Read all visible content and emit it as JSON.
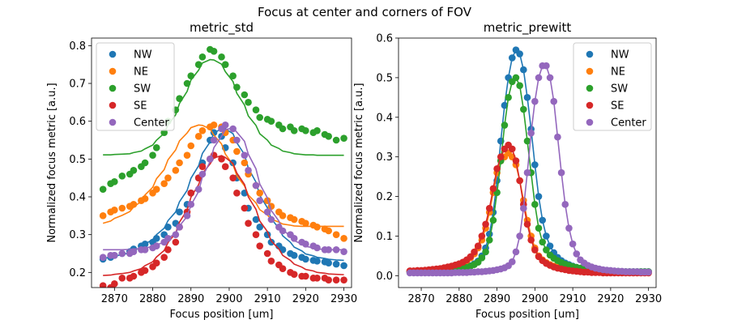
{
  "suptitle": "Focus at center and corners of FOV",
  "chart_data": [
    {
      "type": "scatter",
      "title": "metric_std",
      "xlabel": "Focus position [um]",
      "ylabel": "Normalized focus metric [a.u.]",
      "xlim": [
        2864,
        2932
      ],
      "ylim": [
        0.16,
        0.82
      ],
      "xticks": [
        2870,
        2880,
        2890,
        2900,
        2910,
        2920,
        2930
      ],
      "yticks": [
        0.2,
        0.3,
        0.4,
        0.5,
        0.6,
        0.7,
        0.8
      ],
      "legend_position": "upper-left",
      "x": [
        2867,
        2869,
        2870,
        2872,
        2874,
        2875,
        2877,
        2878,
        2880,
        2881,
        2883,
        2884,
        2886,
        2887,
        2889,
        2890,
        2892,
        2893,
        2895,
        2896,
        2898,
        2899,
        2901,
        2902,
        2904,
        2905,
        2907,
        2908,
        2910,
        2911,
        2913,
        2914,
        2916,
        2917,
        2919,
        2920,
        2922,
        2923,
        2925,
        2926,
        2928,
        2930
      ],
      "series": [
        {
          "name": "NW",
          "color": "#1f77b4",
          "points": [
            0.235,
            0.24,
            0.245,
            0.25,
            0.255,
            0.262,
            0.27,
            0.275,
            0.28,
            0.29,
            0.3,
            0.32,
            0.33,
            0.36,
            0.38,
            0.41,
            0.45,
            0.49,
            0.55,
            0.57,
            0.56,
            0.53,
            0.49,
            0.45,
            0.41,
            0.37,
            0.34,
            0.32,
            0.3,
            0.28,
            0.27,
            0.26,
            0.25,
            0.245,
            0.24,
            0.235,
            0.232,
            0.23,
            0.228,
            0.225,
            0.222,
            0.218
          ],
          "fit": [
            0.237,
            0.24,
            0.243,
            0.247,
            0.252,
            0.258,
            0.266,
            0.275,
            0.287,
            0.3,
            0.317,
            0.337,
            0.36,
            0.387,
            0.417,
            0.449,
            0.482,
            0.515,
            0.545,
            0.568,
            0.581,
            0.58,
            0.567,
            0.543,
            0.512,
            0.476,
            0.439,
            0.404,
            0.371,
            0.342,
            0.317,
            0.297,
            0.28,
            0.267,
            0.257,
            0.249,
            0.244,
            0.24,
            0.237,
            0.235,
            0.233,
            0.232
          ]
        },
        {
          "name": "NE",
          "color": "#ff7f0e",
          "points": [
            0.35,
            0.36,
            0.365,
            0.37,
            0.375,
            0.38,
            0.39,
            0.395,
            0.41,
            0.42,
            0.435,
            0.45,
            0.47,
            0.49,
            0.51,
            0.535,
            0.56,
            0.575,
            0.585,
            0.59,
            0.585,
            0.57,
            0.55,
            0.52,
            0.49,
            0.46,
            0.43,
            0.41,
            0.39,
            0.375,
            0.36,
            0.35,
            0.345,
            0.34,
            0.335,
            0.33,
            0.325,
            0.32,
            0.315,
            0.31,
            0.3,
            0.29
          ],
          "fit": [
            0.33,
            0.336,
            0.343,
            0.351,
            0.361,
            0.373,
            0.388,
            0.405,
            0.425,
            0.448,
            0.472,
            0.498,
            0.524,
            0.548,
            0.569,
            0.583,
            0.59,
            0.589,
            0.58,
            0.563,
            0.54,
            0.513,
            0.485,
            0.456,
            0.429,
            0.405,
            0.384,
            0.366,
            0.352,
            0.341,
            0.333,
            0.328,
            0.325,
            0.323,
            0.322,
            0.322,
            0.322,
            0.322,
            0.322,
            0.322,
            0.322,
            0.322
          ]
        },
        {
          "name": "SW",
          "color": "#2ca02c",
          "points": [
            0.42,
            0.435,
            0.44,
            0.455,
            0.46,
            0.47,
            0.48,
            0.49,
            0.51,
            0.53,
            0.57,
            0.6,
            0.63,
            0.66,
            0.7,
            0.72,
            0.75,
            0.77,
            0.79,
            0.785,
            0.77,
            0.75,
            0.72,
            0.69,
            0.67,
            0.65,
            0.63,
            0.61,
            0.605,
            0.6,
            0.59,
            0.58,
            0.585,
            0.575,
            0.58,
            0.575,
            0.57,
            0.575,
            0.565,
            0.56,
            0.55,
            0.555
          ],
          "fit": [
            0.511,
            0.511,
            0.512,
            0.513,
            0.514,
            0.517,
            0.521,
            0.527,
            0.537,
            0.55,
            0.568,
            0.59,
            0.617,
            0.647,
            0.679,
            0.709,
            0.735,
            0.754,
            0.763,
            0.762,
            0.751,
            0.731,
            0.705,
            0.674,
            0.643,
            0.614,
            0.589,
            0.567,
            0.55,
            0.537,
            0.528,
            0.521,
            0.517,
            0.514,
            0.512,
            0.511,
            0.511,
            0.51,
            0.51,
            0.51,
            0.51,
            0.51
          ]
        },
        {
          "name": "SE",
          "color": "#d62728",
          "points": [
            0.165,
            0.16,
            0.17,
            0.185,
            0.185,
            0.19,
            0.2,
            0.205,
            0.215,
            0.225,
            0.24,
            0.26,
            0.28,
            0.32,
            0.36,
            0.41,
            0.45,
            0.48,
            0.5,
            0.51,
            0.5,
            0.48,
            0.45,
            0.41,
            0.37,
            0.33,
            0.3,
            0.27,
            0.25,
            0.23,
            0.22,
            0.21,
            0.2,
            0.195,
            0.19,
            0.19,
            0.185,
            0.185,
            0.185,
            0.18,
            0.18,
            0.18
          ],
          "fit": [
            0.192,
            0.193,
            0.195,
            0.197,
            0.2,
            0.204,
            0.21,
            0.218,
            0.228,
            0.241,
            0.258,
            0.279,
            0.304,
            0.333,
            0.365,
            0.399,
            0.432,
            0.462,
            0.487,
            0.503,
            0.509,
            0.504,
            0.488,
            0.463,
            0.433,
            0.4,
            0.367,
            0.336,
            0.308,
            0.283,
            0.262,
            0.245,
            0.232,
            0.222,
            0.214,
            0.208,
            0.204,
            0.2,
            0.198,
            0.196,
            0.195,
            0.194
          ]
        },
        {
          "name": "Center",
          "color": "#9467bd",
          "points": [
            0.24,
            0.245,
            0.245,
            0.25,
            0.25,
            0.255,
            0.26,
            0.26,
            0.265,
            0.27,
            0.28,
            0.29,
            0.3,
            0.32,
            0.35,
            0.38,
            0.42,
            0.46,
            0.5,
            0.55,
            0.58,
            0.59,
            0.58,
            0.55,
            0.51,
            0.47,
            0.43,
            0.39,
            0.36,
            0.34,
            0.32,
            0.31,
            0.3,
            0.29,
            0.28,
            0.275,
            0.27,
            0.265,
            0.26,
            0.26,
            0.26,
            0.255
          ],
          "fit": [
            0.26,
            0.26,
            0.26,
            0.26,
            0.261,
            0.262,
            0.263,
            0.265,
            0.268,
            0.273,
            0.28,
            0.29,
            0.304,
            0.323,
            0.348,
            0.378,
            0.414,
            0.453,
            0.493,
            0.53,
            0.56,
            0.578,
            0.582,
            0.571,
            0.547,
            0.513,
            0.474,
            0.434,
            0.397,
            0.364,
            0.336,
            0.313,
            0.296,
            0.284,
            0.275,
            0.269,
            0.265,
            0.262,
            0.261,
            0.26,
            0.26,
            0.26
          ]
        }
      ]
    },
    {
      "type": "line",
      "title": "metric_prewitt",
      "xlabel": "Focus position [um]",
      "ylabel": "Normalized focus metric [a.u.]",
      "xlim": [
        2864,
        2932
      ],
      "ylim": [
        -0.03,
        0.6
      ],
      "xticks": [
        2870,
        2880,
        2890,
        2900,
        2910,
        2920,
        2930
      ],
      "yticks": [
        0.0,
        0.1,
        0.2,
        0.3,
        0.4,
        0.5,
        0.6
      ],
      "legend_position": "upper-right",
      "x": [
        2867,
        2868,
        2869,
        2870,
        2871,
        2872,
        2873,
        2874,
        2875,
        2876,
        2877,
        2878,
        2879,
        2880,
        2881,
        2882,
        2883,
        2884,
        2885,
        2886,
        2887,
        2888,
        2889,
        2890,
        2891,
        2892,
        2893,
        2894,
        2895,
        2896,
        2897,
        2898,
        2899,
        2900,
        2901,
        2902,
        2903,
        2904,
        2905,
        2906,
        2907,
        2908,
        2909,
        2910,
        2911,
        2912,
        2913,
        2914,
        2915,
        2916,
        2917,
        2918,
        2919,
        2920,
        2921,
        2922,
        2923,
        2924,
        2925,
        2926,
        2927,
        2928,
        2929,
        2930
      ],
      "series": [
        {
          "name": "NW",
          "color": "#1f77b4",
          "points": [
            0.01,
            0.01,
            0.01,
            0.011,
            0.011,
            0.012,
            0.012,
            0.013,
            0.013,
            0.014,
            0.015,
            0.016,
            0.017,
            0.018,
            0.02,
            0.022,
            0.025,
            0.03,
            0.037,
            0.05,
            0.07,
            0.105,
            0.16,
            0.24,
            0.34,
            0.43,
            0.5,
            0.55,
            0.57,
            0.56,
            0.52,
            0.45,
            0.37,
            0.28,
            0.2,
            0.14,
            0.1,
            0.075,
            0.058,
            0.046,
            0.038,
            0.032,
            0.028,
            0.024,
            0.021,
            0.019,
            0.017,
            0.016,
            0.015,
            0.014,
            0.013,
            0.012,
            0.012,
            0.011,
            0.011,
            0.011,
            0.01,
            0.01,
            0.01,
            0.01,
            0.01,
            0.01,
            0.01,
            0.01
          ]
        },
        {
          "name": "NE",
          "color": "#ff7f0e",
          "points": [
            0.01,
            0.011,
            0.011,
            0.012,
            0.013,
            0.014,
            0.015,
            0.016,
            0.017,
            0.019,
            0.021,
            0.023,
            0.026,
            0.029,
            0.033,
            0.038,
            0.045,
            0.055,
            0.07,
            0.09,
            0.12,
            0.16,
            0.21,
            0.26,
            0.29,
            0.3,
            0.31,
            0.3,
            0.28,
            0.24,
            0.19,
            0.14,
            0.1,
            0.07,
            0.05,
            0.04,
            0.033,
            0.028,
            0.024,
            0.021,
            0.019,
            0.017,
            0.015,
            0.014,
            0.013,
            0.012,
            0.011,
            0.011,
            0.01,
            0.01,
            0.01,
            0.009,
            0.009,
            0.009,
            0.009,
            0.009,
            0.009,
            0.009,
            0.009,
            0.009,
            0.009,
            0.009,
            0.009,
            0.009
          ]
        },
        {
          "name": "SW",
          "color": "#2ca02c",
          "points": [
            0.01,
            0.01,
            0.01,
            0.011,
            0.011,
            0.011,
            0.012,
            0.012,
            0.013,
            0.013,
            0.014,
            0.015,
            0.016,
            0.017,
            0.019,
            0.021,
            0.024,
            0.028,
            0.034,
            0.045,
            0.06,
            0.09,
            0.14,
            0.21,
            0.29,
            0.38,
            0.45,
            0.49,
            0.5,
            0.48,
            0.42,
            0.34,
            0.26,
            0.18,
            0.12,
            0.085,
            0.065,
            0.052,
            0.044,
            0.038,
            0.033,
            0.029,
            0.026,
            0.023,
            0.021,
            0.019,
            0.017,
            0.016,
            0.015,
            0.014,
            0.013,
            0.012,
            0.012,
            0.011,
            0.011,
            0.011,
            0.01,
            0.01,
            0.01,
            0.01,
            0.01,
            0.01,
            0.01,
            0.01
          ]
        },
        {
          "name": "SE",
          "color": "#d62728",
          "points": [
            0.012,
            0.012,
            0.013,
            0.013,
            0.014,
            0.015,
            0.016,
            0.017,
            0.018,
            0.02,
            0.022,
            0.024,
            0.027,
            0.03,
            0.034,
            0.04,
            0.048,
            0.06,
            0.075,
            0.1,
            0.13,
            0.17,
            0.22,
            0.27,
            0.3,
            0.32,
            0.33,
            0.32,
            0.29,
            0.24,
            0.18,
            0.13,
            0.09,
            0.065,
            0.048,
            0.038,
            0.031,
            0.026,
            0.022,
            0.019,
            0.017,
            0.015,
            0.013,
            0.012,
            0.011,
            0.01,
            0.009,
            0.009,
            0.008,
            0.008,
            0.008,
            0.007,
            0.007,
            0.007,
            0.007,
            0.007,
            0.007,
            0.007,
            0.007,
            0.007,
            0.007,
            0.007,
            0.007,
            0.007
          ]
        },
        {
          "name": "Center",
          "color": "#9467bd",
          "points": [
            0.007,
            0.007,
            0.007,
            0.007,
            0.007,
            0.007,
            0.007,
            0.007,
            0.007,
            0.007,
            0.007,
            0.007,
            0.008,
            0.008,
            0.008,
            0.008,
            0.009,
            0.009,
            0.01,
            0.01,
            0.011,
            0.012,
            0.013,
            0.015,
            0.017,
            0.02,
            0.025,
            0.035,
            0.06,
            0.1,
            0.17,
            0.26,
            0.36,
            0.44,
            0.5,
            0.53,
            0.53,
            0.5,
            0.44,
            0.35,
            0.26,
            0.18,
            0.12,
            0.08,
            0.055,
            0.04,
            0.032,
            0.026,
            0.022,
            0.019,
            0.017,
            0.015,
            0.014,
            0.013,
            0.012,
            0.011,
            0.011,
            0.01,
            0.01,
            0.01,
            0.01,
            0.009,
            0.009,
            0.009
          ]
        }
      ]
    }
  ]
}
